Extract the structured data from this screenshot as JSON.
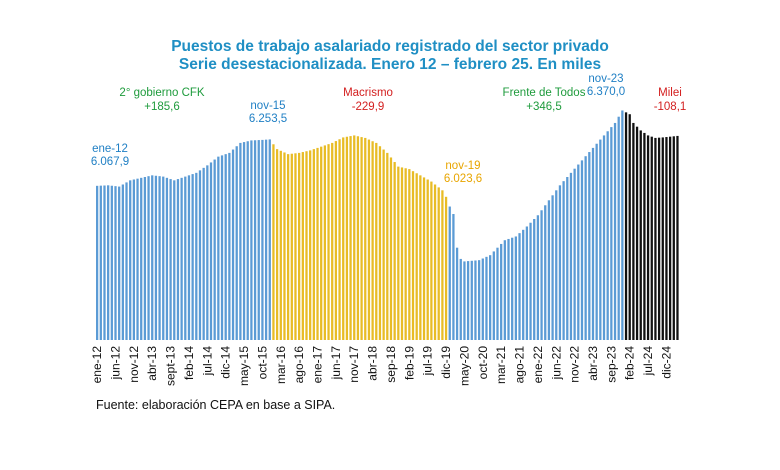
{
  "chart_data": {
    "type": "bar",
    "title": "Puestos de trabajo asalariado registrado del sector privado",
    "subtitle": "Serie desestacionalizada. Enero 12 – febrero 25. En miles",
    "source": "Fuente: elaboración CEPA en base a SIPA.",
    "ylim": [
      5450,
      6420
    ],
    "grid": false,
    "x_tick_labels": [
      "ene-12",
      "jun-12",
      "nov-12",
      "abr-13",
      "sept-13",
      "feb-14",
      "jul-14",
      "dic-14",
      "may-15",
      "oct-15",
      "mar-16",
      "ago-16",
      "ene-17",
      "jun-17",
      "nov-17",
      "abr-18",
      "sep-18",
      "feb-19",
      "jul-19",
      "dic-19",
      "may-20",
      "oct-20",
      "mar-21",
      "ago-21",
      "ene-22",
      "jun-22",
      "nov-22",
      "abr-23",
      "sep-23",
      "feb-24",
      "jul-24",
      "dic-24"
    ],
    "periods": [
      {
        "name": "2° gobierno CFK",
        "change": "+185,6",
        "color": "#5b9bd5",
        "months": 48
      },
      {
        "name": "Macrismo",
        "change": "-229,9",
        "color": "#e8bc25",
        "months": 48
      },
      {
        "name": "Frente de Todos",
        "change": "+346,5",
        "color": "#5b9bd5",
        "months": 48
      },
      {
        "name": "Milei",
        "change": "-108,1",
        "color": "#111111",
        "months": 15
      }
    ],
    "annotations": [
      {
        "date": "ene-12",
        "value": "6.067,9"
      },
      {
        "date": "nov-15",
        "value": "6.253,5"
      },
      {
        "date": "nov-19",
        "value": "6.023,6"
      },
      {
        "date": "nov-23",
        "value": "6.370,0"
      }
    ],
    "knots": [
      [
        0,
        6068
      ],
      [
        3,
        6070
      ],
      [
        6,
        6065
      ],
      [
        9,
        6090
      ],
      [
        12,
        6100
      ],
      [
        15,
        6110
      ],
      [
        18,
        6105
      ],
      [
        21,
        6090
      ],
      [
        24,
        6105
      ],
      [
        27,
        6120
      ],
      [
        30,
        6150
      ],
      [
        33,
        6185
      ],
      [
        36,
        6200
      ],
      [
        39,
        6240
      ],
      [
        42,
        6250
      ],
      [
        45,
        6252
      ],
      [
        47,
        6254
      ],
      [
        49,
        6215
      ],
      [
        52,
        6195
      ],
      [
        55,
        6200
      ],
      [
        58,
        6210
      ],
      [
        61,
        6225
      ],
      [
        64,
        6240
      ],
      [
        67,
        6262
      ],
      [
        70,
        6270
      ],
      [
        73,
        6260
      ],
      [
        76,
        6240
      ],
      [
        79,
        6200
      ],
      [
        82,
        6145
      ],
      [
        85,
        6135
      ],
      [
        88,
        6110
      ],
      [
        91,
        6085
      ],
      [
        94,
        6050
      ],
      [
        95,
        6024
      ],
      [
        96,
        5985
      ],
      [
        97,
        5955
      ],
      [
        98,
        5820
      ],
      [
        99,
        5775
      ],
      [
        100,
        5765
      ],
      [
        104,
        5770
      ],
      [
        107,
        5790
      ],
      [
        109,
        5820
      ],
      [
        111,
        5850
      ],
      [
        114,
        5865
      ],
      [
        117,
        5905
      ],
      [
        120,
        5950
      ],
      [
        123,
        6010
      ],
      [
        126,
        6070
      ],
      [
        129,
        6120
      ],
      [
        132,
        6170
      ],
      [
        135,
        6220
      ],
      [
        138,
        6270
      ],
      [
        141,
        6320
      ],
      [
        143,
        6370
      ],
      [
        145,
        6355
      ],
      [
        146,
        6320
      ],
      [
        148,
        6290
      ],
      [
        150,
        6270
      ],
      [
        152,
        6260
      ],
      [
        154,
        6262
      ],
      [
        156,
        6265
      ],
      [
        158,
        6268
      ]
    ]
  }
}
